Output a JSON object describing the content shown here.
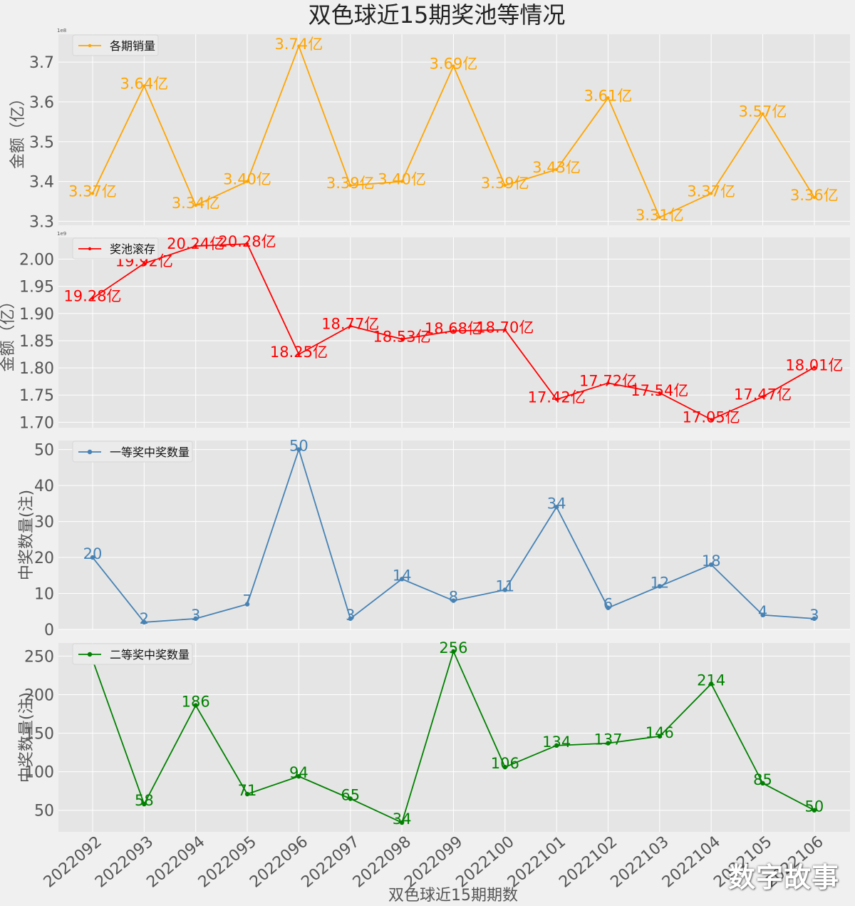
{
  "title": "双色球近15期奖池等情况",
  "xlabel": "双色球近15期期数",
  "watermark": "数字故事",
  "chart_data": [
    {
      "type": "line",
      "legend": "各期销量",
      "ylabel": "金额（亿）",
      "offset_text": "1e8",
      "color": "#FFA500",
      "ylim": [
        3.29,
        3.77
      ],
      "yticks": [
        3.3,
        3.4,
        3.5,
        3.6,
        3.7
      ],
      "ytick_labels": [
        "3.3",
        "3.4",
        "3.5",
        "3.6",
        "3.7"
      ],
      "categories": [
        "2022092",
        "2022093",
        "2022094",
        "2022095",
        "2022096",
        "2022097",
        "2022098",
        "2022099",
        "2022100",
        "2022101",
        "2022102",
        "2022103",
        "2022104",
        "2022105",
        "2022106"
      ],
      "values": [
        3.37,
        3.64,
        3.34,
        3.4,
        3.74,
        3.39,
        3.4,
        3.69,
        3.39,
        3.43,
        3.61,
        3.31,
        3.37,
        3.57,
        3.36
      ],
      "labels": [
        "3.37亿",
        "3.64亿",
        "3.34亿",
        "3.40亿",
        "3.74亿",
        "3.39亿",
        "3.40亿",
        "3.69亿",
        "3.39亿",
        "3.43亿",
        "3.61亿",
        "3.31亿",
        "3.37亿",
        "3.57亿",
        "3.36亿"
      ]
    },
    {
      "type": "line",
      "legend": "奖池滚存",
      "ylabel": "金额（亿）",
      "offset_text": "1e9",
      "color": "#FF0000",
      "ylim": [
        1.69,
        2.04
      ],
      "yticks": [
        1.7,
        1.75,
        1.8,
        1.85,
        1.9,
        1.95,
        2.0
      ],
      "ytick_labels": [
        "1.70",
        "1.75",
        "1.80",
        "1.85",
        "1.90",
        "1.95",
        "2.00"
      ],
      "categories": [
        "2022092",
        "2022093",
        "2022094",
        "2022095",
        "2022096",
        "2022097",
        "2022098",
        "2022099",
        "2022100",
        "2022101",
        "2022102",
        "2022103",
        "2022104",
        "2022105",
        "2022106"
      ],
      "values": [
        1.928,
        1.992,
        2.024,
        2.028,
        1.825,
        1.877,
        1.853,
        1.868,
        1.87,
        1.742,
        1.772,
        1.754,
        1.705,
        1.747,
        1.801
      ],
      "labels": [
        "19.28亿",
        "19.92亿",
        "20.24亿",
        "20.28亿",
        "18.25亿",
        "18.77亿",
        "18.53亿",
        "18.68亿",
        "18.70亿",
        "17.42亿",
        "17.72亿",
        "17.54亿",
        "17.05亿",
        "17.47亿",
        "18.01亿"
      ]
    },
    {
      "type": "line",
      "legend": "一等奖中奖数量",
      "ylabel": "中奖数量(注)",
      "color": "#4682B4",
      "ylim": [
        0,
        52.5
      ],
      "yticks": [
        0,
        10,
        20,
        30,
        40,
        50
      ],
      "ytick_labels": [
        "0",
        "10",
        "20",
        "30",
        "40",
        "50"
      ],
      "categories": [
        "2022092",
        "2022093",
        "2022094",
        "2022095",
        "2022096",
        "2022097",
        "2022098",
        "2022099",
        "2022100",
        "2022101",
        "2022102",
        "2022103",
        "2022104",
        "2022105",
        "2022106"
      ],
      "values": [
        20,
        2,
        3,
        7,
        50,
        3,
        14,
        8,
        11,
        34,
        6,
        12,
        18,
        4,
        3
      ],
      "labels": [
        "20",
        "2",
        "3",
        "7",
        "50",
        "3",
        "14",
        "8",
        "11",
        "34",
        "6",
        "12",
        "18",
        "4",
        "3"
      ]
    },
    {
      "type": "line",
      "legend": "二等奖中奖数量",
      "ylabel": "中奖数量(注)",
      "color": "#008000",
      "ylim": [
        22,
        267
      ],
      "yticks": [
        50,
        100,
        150,
        200,
        250
      ],
      "ytick_labels": [
        "50",
        "100",
        "150",
        "200",
        "250"
      ],
      "categories": [
        "2022092",
        "2022093",
        "2022094",
        "2022095",
        "2022096",
        "2022097",
        "2022098",
        "2022099",
        "2022100",
        "2022101",
        "2022102",
        "2022103",
        "2022104",
        "2022105",
        "2022106"
      ],
      "values": [
        245,
        58,
        186,
        71,
        94,
        65,
        34,
        256,
        106,
        134,
        137,
        146,
        214,
        85,
        50
      ],
      "labels": [
        "245",
        "58",
        "186",
        "71",
        "94",
        "65",
        "34",
        "256",
        "106",
        "134",
        "137",
        "146",
        "214",
        "85",
        "50"
      ]
    }
  ]
}
